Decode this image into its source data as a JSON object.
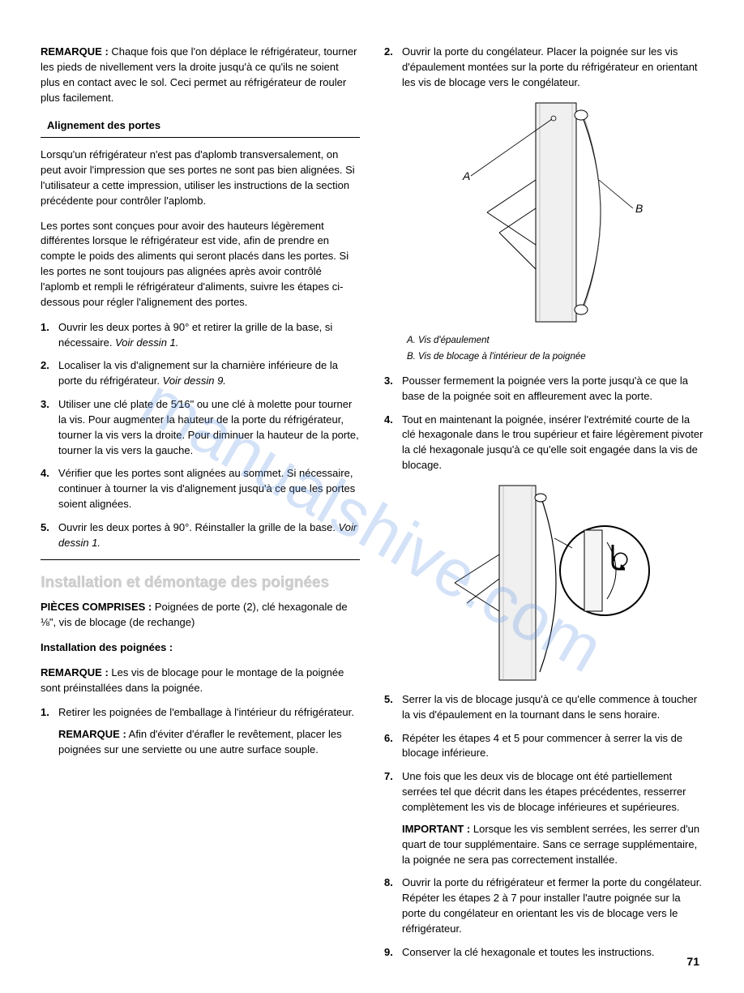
{
  "watermark": "manualshive.com",
  "page_number": "71",
  "left": {
    "remarque1_label": "REMARQUE :",
    "remarque1_text": " Chaque fois que l'on déplace le réfrigérateur, tourner les pieds de nivellement vers la droite jusqu'à ce qu'ils ne soient plus en contact avec le sol. Ceci permet au réfrigérateur de rouler plus facilement.",
    "header1": "Alignement des portes",
    "para1": "Lorsqu'un réfrigérateur n'est pas d'aplomb transversalement, on peut avoir l'impression que ses portes ne sont pas bien alignées. Si l'utilisateur a cette impression, utiliser les instructions de la section précédente pour contrôler l'aplomb.",
    "para2": "Les portes sont conçues pour avoir des hauteurs légèrement différentes lorsque le réfrigérateur est vide, afin de prendre en compte le poids des aliments qui seront placés dans les portes. Si les portes ne sont toujours pas alignées après avoir contrôlé l'aplomb et rempli le réfrigérateur d'aliments, suivre les étapes ci-dessous pour régler l'alignement des portes.",
    "list1": [
      {
        "n": "1.",
        "t": "Ouvrir les deux portes à 90° et retirer la grille de la base, si nécessaire. ",
        "it": "Voir dessin 1."
      },
      {
        "n": "2.",
        "t": "Localiser la vis d'alignement sur la charnière inférieure de la porte du réfrigérateur. ",
        "it": "Voir dessin 9."
      },
      {
        "n": "3.",
        "t": "Utiliser une clé plate de 5⁄16\" ou une clé à molette pour tourner la vis. Pour augmenter la hauteur de la porte du réfrigérateur, tourner la vis vers la droite. Pour diminuer la hauteur de la porte, tourner la vis vers la gauche.",
        "it": ""
      },
      {
        "n": "4.",
        "t": "Vérifier que les portes sont alignées au sommet. Si nécessaire, continuer à tourner la vis d'alignement jusqu'à ce que les portes soient alignées.",
        "it": ""
      },
      {
        "n": "5.",
        "t": "Ouvrir les deux portes à 90°. Réinstaller la grille de la base. ",
        "it": "Voir dessin 1."
      }
    ],
    "section_title": "Installation et démontage des poignées",
    "pieces_label": "PIÈCES COMPRISES :",
    "pieces_text": " Poignées de porte (2), clé hexagonale de ⅛\", vis de blocage (de rechange)",
    "subheader": "Installation des poignées :",
    "remarque2_label": "REMARQUE :",
    "remarque2_text": " Les vis de blocage pour le montage de la poignée sont préinstallées dans la poignée.",
    "list2_1_n": "1.",
    "list2_1_t": "Retirer les poignées de l'emballage à l'intérieur du réfrigérateur.",
    "list2_1_rem_label": "REMARQUE :",
    "list2_1_rem_text": " Afin d'éviter d'érafler le revêtement, placer les poignées sur une serviette ou une autre surface souple."
  },
  "right": {
    "list1_2_n": "2.",
    "list1_2_t": "Ouvrir la porte du congélateur. Placer la poignée sur les vis d'épaulement montées sur la porte du réfrigérateur en orientant les vis de blocage vers le congélateur.",
    "caption_a": "A. Vis d'épaulement",
    "caption_b": "B. Vis de blocage à l'intérieur de la poignée",
    "diagram1": {
      "label_a": "A",
      "label_b": "B",
      "colors": {
        "stroke": "#000",
        "fill_light": "#f5f5f5",
        "fill_white": "#fff"
      }
    },
    "listA": [
      {
        "n": "3.",
        "t": "Pousser fermement la poignée vers la porte jusqu'à ce que la base de la poignée soit en affleurement avec la porte."
      },
      {
        "n": "4.",
        "t": "Tout en maintenant la poignée, insérer l'extrémité courte de la clé hexagonale dans le trou supérieur et faire légèrement pivoter la clé hexagonale jusqu'à ce qu'elle soit engagée dans la vis de blocage."
      }
    ],
    "listB": [
      {
        "n": "5.",
        "t": "Serrer la vis de blocage jusqu'à ce qu'elle commence à toucher la vis d'épaulement en la tournant dans le sens horaire.",
        "imp": "",
        "impt": ""
      },
      {
        "n": "6.",
        "t": "Répéter les étapes 4 et 5 pour commencer à serrer la vis de blocage inférieure.",
        "imp": "",
        "impt": ""
      },
      {
        "n": "7.",
        "t": "Une fois que les deux vis de blocage ont été partiellement serrées tel que décrit dans les étapes précédentes, resserrer complètement les vis de blocage inférieures et supérieures.",
        "imp": "IMPORTANT :",
        "impt": " Lorsque les vis semblent serrées, les serrer d'un quart de tour supplémentaire. Sans ce serrage supplémentaire, la poignée ne sera pas correctement installée."
      },
      {
        "n": "8.",
        "t": "Ouvrir la porte du réfrigérateur et fermer la porte du congélateur. Répéter les étapes 2 à 7 pour installer l'autre poignée sur la porte du congélateur en orientant les vis de blocage vers le réfrigérateur.",
        "imp": "",
        "impt": ""
      },
      {
        "n": "9.",
        "t": "Conserver la clé hexagonale et toutes les instructions.",
        "imp": "",
        "impt": ""
      }
    ]
  }
}
